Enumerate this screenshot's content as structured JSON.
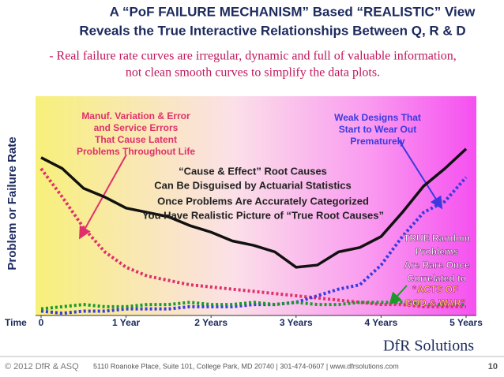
{
  "chart_data": {
    "type": "line",
    "title": [
      "A “PoF FAILURE MECHANISM” Based “REALISTIC” View",
      "Reveals the True Interactive Relationships Between Q, R & D"
    ],
    "subtitle": [
      "- Real failure rate curves are irregular, dynamic and full of valuable information,",
      "not clean smooth curves to simplify the data plots."
    ],
    "y_label": "Problem or Failure Rate",
    "x_label": "Time",
    "xlim": [
      0,
      5
    ],
    "xticks": [
      0,
      {
        "value": 1,
        "label": "1 Year"
      },
      {
        "value": 2,
        "label": "2 Years"
      },
      {
        "value": 3,
        "label": "3 Years"
      },
      {
        "value": 4,
        "label": "4 Years"
      },
      {
        "value": 5,
        "label": "5 Years"
      }
    ],
    "ylim": [
      0,
      100
    ],
    "x": [
      0,
      0.25,
      0.5,
      0.75,
      1,
      1.25,
      1.5,
      1.75,
      2,
      2.25,
      2.5,
      2.75,
      3,
      3.25,
      3.5,
      3.75,
      4,
      4.25,
      4.5,
      4.75,
      5
    ],
    "series": [
      {
        "color": "#111111",
        "line_style": "solid",
        "values": [
          72,
          67,
          58,
          54,
          49,
          47,
          45,
          41,
          38,
          34,
          32,
          29,
          22,
          23,
          29,
          31,
          36,
          47,
          59,
          67,
          76
        ]
      },
      {
        "color": "#e0306a",
        "line_style": "dotted",
        "values": [
          67,
          54,
          40,
          29,
          22,
          18,
          16,
          14,
          13,
          12,
          11,
          10,
          9,
          8,
          7,
          6,
          5,
          5,
          4,
          4,
          4
        ]
      },
      {
        "color": "#3a3ae0",
        "line_style": "dotted",
        "values": [
          2,
          1,
          2,
          2,
          3,
          3,
          3,
          4,
          4,
          4,
          5,
          5,
          6,
          9,
          12,
          14,
          23,
          36,
          47,
          52,
          63
        ]
      },
      {
        "color": "#1a9a2a",
        "line_style": "dotted",
        "values": [
          3,
          4,
          5,
          4,
          4,
          5,
          5,
          6,
          5,
          5,
          6,
          5,
          6,
          5,
          5,
          6,
          6,
          6,
          5,
          5,
          5
        ]
      }
    ],
    "annotations": [
      {
        "lines": [
          "Manuf. Variation & Error",
          "and Service Errors",
          "That Cause Latent",
          "Problems Throughout Life"
        ]
      },
      {
        "lines": [
          "Weak Designs That",
          "Start to Wear Out",
          "Prematurely"
        ]
      },
      {
        "lines": [
          "“Cause & Effect” Root Causes",
          "Can Be Disguised by Actuarial Statistics"
        ]
      },
      {
        "lines": [
          "Once Problems Are Accurately Categorized",
          "You Have Realistic Picture of “True Root Causes”"
        ]
      },
      {
        "lines": [
          "TRUE Random",
          "Problems",
          "Are Rare Once",
          "Correlated to"
        ]
      },
      {
        "lines": [
          "“ACTS OF",
          "GOD & WAR”"
        ]
      }
    ]
  },
  "footer": {
    "logo": "DfR Solutions",
    "copyright": "© 2012 DfR & ASQ",
    "address": "5110 Roanoke Place, Suite 101, College Park, MD 20740  |  301-474-0607  |  www.dfrsolutions.com",
    "page": "10"
  }
}
